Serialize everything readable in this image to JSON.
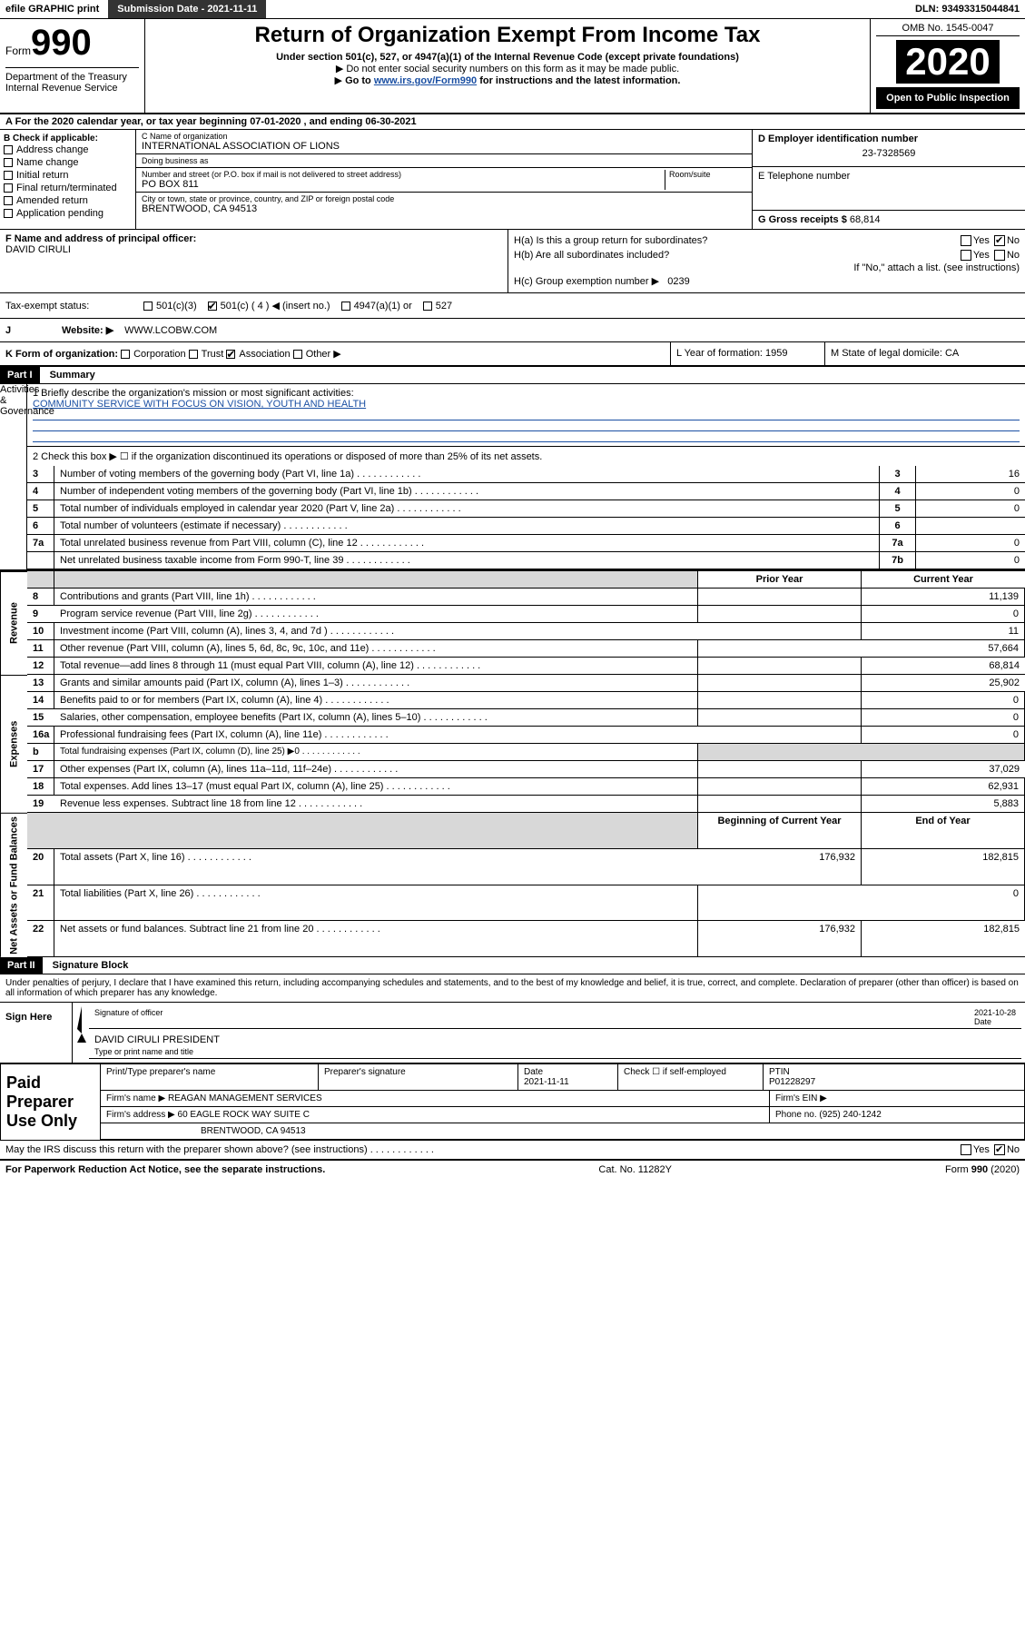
{
  "topbar": {
    "efile": "efile GRAPHIC print",
    "subdate_label": "Submission Date - 2021-11-11",
    "din": "DLN: 93493315044841"
  },
  "header": {
    "form_word": "Form",
    "form_num": "990",
    "dept": "Department of the Treasury",
    "irs": "Internal Revenue Service",
    "title": "Return of Organization Exempt From Income Tax",
    "sub": "Under section 501(c), 527, or 4947(a)(1) of the Internal Revenue Code (except private foundations)",
    "note1": "Do not enter social security numbers on this form as it may be made public.",
    "note2_pre": "Go to ",
    "note2_link": "www.irs.gov/Form990",
    "note2_post": " for instructions and the latest information.",
    "omb": "OMB No. 1545-0047",
    "year": "2020",
    "open": "Open to Public Inspection"
  },
  "period": "A For the 2020 calendar year, or tax year beginning 07-01-2020    , and ending 06-30-2021",
  "boxB": {
    "title": "B Check if applicable:",
    "items": [
      "Address change",
      "Name change",
      "Initial return",
      "Final return/terminated",
      "Amended return",
      "Application pending"
    ]
  },
  "boxC": {
    "name_label": "C Name of organization",
    "name": "INTERNATIONAL ASSOCIATION OF LIONS",
    "dba_label": "Doing business as",
    "dba": "",
    "addr_label": "Number and street (or P.O. box if mail is not delivered to street address)",
    "room_label": "Room/suite",
    "addr": "PO BOX 811",
    "city_label": "City or town, state or province, country, and ZIP or foreign postal code",
    "city": "BRENTWOOD, CA  94513"
  },
  "boxD": {
    "label": "D Employer identification number",
    "val": "23-7328569"
  },
  "boxE": {
    "label": "E Telephone number",
    "val": ""
  },
  "boxG": {
    "label": "G Gross receipts $",
    "val": "68,814"
  },
  "boxF": {
    "label": "F  Name and address of principal officer:",
    "val": "DAVID CIRULI"
  },
  "boxH": {
    "a": "H(a)  Is this a group return for subordinates?",
    "b": "H(b)  Are all subordinates included?",
    "b_note": "If \"No,\" attach a list. (see instructions)",
    "c": "H(c)  Group exemption number ▶",
    "c_val": "0239",
    "a_yes": false,
    "a_no": true
  },
  "taxI": {
    "label": "Tax-exempt status:",
    "c3": "501(c)(3)",
    "c": "501(c) ( 4 ) ◀ (insert no.)",
    "a1": "4947(a)(1) or",
    "s527": "527",
    "c_checked": true
  },
  "boxJ": {
    "label": "Website: ▶",
    "val": "WWW.LCOBW.COM"
  },
  "rowK": {
    "k": "K Form of organization:",
    "corp": "Corporation",
    "trust": "Trust",
    "assoc": "Association",
    "other": "Other ▶",
    "assoc_checked": true,
    "l": "L Year of formation: 1959",
    "m": "M State of legal domicile: CA"
  },
  "partI": {
    "hdr": "Part I",
    "title": "Summary"
  },
  "summaryTop": {
    "l1": "1  Briefly describe the organization's mission or most significant activities:",
    "mission": "COMMUNITY SERVICE WITH FOCUS ON VISION, YOUTH AND HEALTH",
    "l2": "2    Check this box ▶ ☐  if the organization discontinued its operations or disposed of more than 25% of its net assets."
  },
  "gov_rows": [
    {
      "n": "3",
      "t": "Number of voting members of the governing body (Part VI, line 1a)",
      "box": "3",
      "v": "16"
    },
    {
      "n": "4",
      "t": "Number of independent voting members of the governing body (Part VI, line 1b)",
      "box": "4",
      "v": "0"
    },
    {
      "n": "5",
      "t": "Total number of individuals employed in calendar year 2020 (Part V, line 2a)",
      "box": "5",
      "v": "0"
    },
    {
      "n": "6",
      "t": "Total number of volunteers (estimate if necessary)",
      "box": "6",
      "v": ""
    },
    {
      "n": "7a",
      "t": "Total unrelated business revenue from Part VIII, column (C), line 12",
      "box": "7a",
      "v": "0"
    },
    {
      "n": "",
      "t": "Net unrelated business taxable income from Form 990-T, line 39",
      "box": "7b",
      "v": "0"
    }
  ],
  "col_hdrs": {
    "prior": "Prior Year",
    "current": "Current Year"
  },
  "vlabels": {
    "gov": "Activities & Governance",
    "rev": "Revenue",
    "exp": "Expenses",
    "net": "Net Assets or Fund Balances"
  },
  "rev_rows": [
    {
      "n": "8",
      "t": "Contributions and grants (Part VIII, line 1h)",
      "p": "",
      "c": "11,139"
    },
    {
      "n": "9",
      "t": "Program service revenue (Part VIII, line 2g)",
      "p": "",
      "c": "0"
    },
    {
      "n": "10",
      "t": "Investment income (Part VIII, column (A), lines 3, 4, and 7d )",
      "p": "",
      "c": "11"
    },
    {
      "n": "11",
      "t": "Other revenue (Part VIII, column (A), lines 5, 6d, 8c, 9c, 10c, and 11e)",
      "p": "",
      "c": "57,664"
    },
    {
      "n": "12",
      "t": "Total revenue—add lines 8 through 11 (must equal Part VIII, column (A), line 12)",
      "p": "",
      "c": "68,814"
    }
  ],
  "exp_rows": [
    {
      "n": "13",
      "t": "Grants and similar amounts paid (Part IX, column (A), lines 1–3)",
      "p": "",
      "c": "25,902"
    },
    {
      "n": "14",
      "t": "Benefits paid to or for members (Part IX, column (A), line 4)",
      "p": "",
      "c": "0"
    },
    {
      "n": "15",
      "t": "Salaries, other compensation, employee benefits (Part IX, column (A), lines 5–10)",
      "p": "",
      "c": "0"
    },
    {
      "n": "16a",
      "t": "Professional fundraising fees (Part IX, column (A), line 11e)",
      "p": "",
      "c": "0"
    },
    {
      "n": "b",
      "t": "Total fundraising expenses (Part IX, column (D), line 25) ▶0",
      "p": "SHADE",
      "c": "SHADE"
    },
    {
      "n": "17",
      "t": "Other expenses (Part IX, column (A), lines 11a–11d, 11f–24e)",
      "p": "",
      "c": "37,029"
    },
    {
      "n": "18",
      "t": "Total expenses. Add lines 13–17 (must equal Part IX, column (A), line 25)",
      "p": "",
      "c": "62,931"
    },
    {
      "n": "19",
      "t": "Revenue less expenses. Subtract line 18 from line 12",
      "p": "",
      "c": "5,883"
    }
  ],
  "net_hdrs": {
    "begin": "Beginning of Current Year",
    "end": "End of Year"
  },
  "net_rows": [
    {
      "n": "20",
      "t": "Total assets (Part X, line 16)",
      "b": "176,932",
      "e": "182,815"
    },
    {
      "n": "21",
      "t": "Total liabilities (Part X, line 26)",
      "b": "",
      "e": "0"
    },
    {
      "n": "22",
      "t": "Net assets or fund balances. Subtract line 21 from line 20",
      "b": "176,932",
      "e": "182,815"
    }
  ],
  "partII": {
    "hdr": "Part II",
    "title": "Signature Block",
    "decl": "Under penalties of perjury, I declare that I have examined this return, including accompanying schedules and statements, and to the best of my knowledge and belief, it is true, correct, and complete. Declaration of preparer (other than officer) is based on all information of which preparer has any knowledge."
  },
  "sign": {
    "here": "Sign Here",
    "sig_label": "Signature of officer",
    "date_label": "Date",
    "date": "2021-10-28",
    "name": "DAVID CIRULI  PRESIDENT",
    "name_label": "Type or print name and title"
  },
  "paid": {
    "lbl": "Paid Preparer Use Only",
    "col1": "Print/Type preparer's name",
    "col2": "Preparer's signature",
    "col3_l": "Date",
    "col3_v": "2021-11-11",
    "col4": "Check ☐  if self-employed",
    "col5_l": "PTIN",
    "col5_v": "P01228297",
    "firm_l": "Firm's name    ▶",
    "firm_v": "REAGAN MANAGEMENT SERVICES",
    "ein_l": "Firm's EIN ▶",
    "addr_l": "Firm's address ▶",
    "addr_v": "60 EAGLE ROCK WAY SUITE C",
    "addr_v2": "BRENTWOOD, CA  94513",
    "phone_l": "Phone no.",
    "phone_v": "(925) 240-1242"
  },
  "discuss": {
    "q": "May the IRS discuss this return with the preparer shown above? (see instructions)",
    "no_checked": true
  },
  "footer": {
    "left": "For Paperwork Reduction Act Notice, see the separate instructions.",
    "mid": "Cat. No. 11282Y",
    "right": "Form 990 (2020)"
  }
}
